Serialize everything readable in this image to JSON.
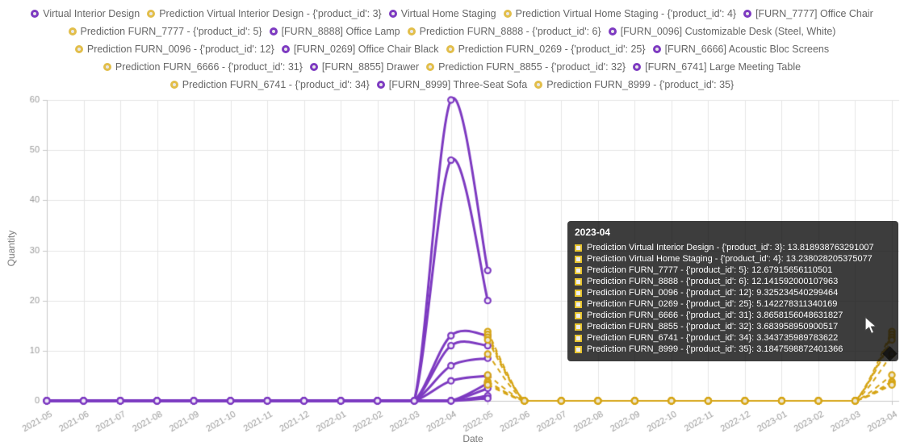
{
  "colors": {
    "actual": "#7D3AC1",
    "actual_marker_fill": "#EFE9F7",
    "prediction": "#D6A516",
    "prediction_marker_fill": "#EDE7D2",
    "legend_prediction_ring": "#E2BE4A",
    "grid": "#e6e6e6",
    "axis": "#c9c9c9",
    "tick_text": "#999999",
    "legend_text": "#666666",
    "tooltip_bg": "rgba(12,12,12,0.80)"
  },
  "legend": {
    "items": [
      {
        "label": "Virtual Interior Design",
        "type": "actual"
      },
      {
        "label": "Prediction Virtual Interior Design - {'product_id': 3}",
        "type": "prediction"
      },
      {
        "label": "Virtual Home Staging",
        "type": "actual"
      },
      {
        "label": "Prediction Virtual Home Staging - {'product_id': 4}",
        "type": "prediction"
      },
      {
        "label": "[FURN_7777] Office Chair",
        "type": "actual"
      },
      {
        "label": "Prediction FURN_7777 - {'product_id': 5}",
        "type": "prediction"
      },
      {
        "label": "[FURN_8888] Office Lamp",
        "type": "actual"
      },
      {
        "label": "Prediction FURN_8888 - {'product_id': 6}",
        "type": "prediction"
      },
      {
        "label": "[FURN_0096] Customizable Desk (Steel, White)",
        "type": "actual"
      },
      {
        "label": "Prediction FURN_0096 - {'product_id': 12}",
        "type": "prediction"
      },
      {
        "label": "[FURN_0269] Office Chair Black",
        "type": "actual"
      },
      {
        "label": "Prediction FURN_0269 - {'product_id': 25}",
        "type": "prediction"
      },
      {
        "label": "[FURN_6666] Acoustic Bloc Screens",
        "type": "actual"
      },
      {
        "label": "Prediction FURN_6666 - {'product_id': 31}",
        "type": "prediction"
      },
      {
        "label": "[FURN_8855] Drawer",
        "type": "actual"
      },
      {
        "label": "Prediction FURN_8855 - {'product_id': 32}",
        "type": "prediction"
      },
      {
        "label": "[FURN_6741] Large Meeting Table",
        "type": "actual"
      },
      {
        "label": "Prediction FURN_6741 - {'product_id': 34}",
        "type": "prediction"
      },
      {
        "label": "[FURN_8999] Three-Seat Sofa",
        "type": "actual"
      },
      {
        "label": "Prediction FURN_8999 - {'product_id': 35}",
        "type": "prediction"
      }
    ]
  },
  "axes": {
    "x_label": "Date",
    "y_label": "Quantity",
    "y_ticks": [
      0,
      10,
      20,
      30,
      40,
      50,
      60
    ]
  },
  "tooltip": {
    "title": "2023-04",
    "rows": [
      {
        "label": "Prediction Virtual Interior Design - {'product_id': 3}",
        "value": "13.818938763291007"
      },
      {
        "label": "Prediction Virtual Home Staging - {'product_id': 4}",
        "value": "13.238028205375077"
      },
      {
        "label": "Prediction FURN_7777 - {'product_id': 5}",
        "value": "12.67915656110501"
      },
      {
        "label": "Prediction FURN_8888 - {'product_id': 6}",
        "value": "12.141592000107963"
      },
      {
        "label": "Prediction FURN_0096 - {'product_id': 12}",
        "value": "9.325234540299464"
      },
      {
        "label": "Prediction FURN_0269 - {'product_id': 25}",
        "value": "5.142278311340169"
      },
      {
        "label": "Prediction FURN_6666 - {'product_id': 31}",
        "value": "3.8658156048631827"
      },
      {
        "label": "Prediction FURN_8855 - {'product_id': 32}",
        "value": "3.683958950900517"
      },
      {
        "label": "Prediction FURN_6741 - {'product_id': 34}",
        "value": "3.343735989783622"
      },
      {
        "label": "Prediction FURN_8999 - {'product_id': 35}",
        "value": "3.1847598872401366"
      }
    ]
  },
  "chart_data": {
    "type": "line",
    "title": "",
    "xlabel": "Date",
    "ylabel": "Quantity",
    "ylim": [
      0,
      60
    ],
    "grid": true,
    "legend_position": "top",
    "x": [
      "2021-05",
      "2021-06",
      "2021-07",
      "2021-08",
      "2021-09",
      "2021-10",
      "2021-11",
      "2021-12",
      "2022-01",
      "2022-02",
      "2022-03",
      "2022-04",
      "2022-05",
      "2022-06",
      "2022-07",
      "2022-08",
      "2022-09",
      "2022-10",
      "2022-11",
      "2022-12",
      "2023-01",
      "2023-02",
      "2023-03",
      "2023-04"
    ],
    "series": [
      {
        "name": "Virtual Interior Design",
        "role": "actual",
        "values": [
          0,
          0,
          0,
          0,
          0,
          0,
          0,
          0,
          0,
          0,
          0,
          60,
          26,
          null,
          null,
          null,
          null,
          null,
          null,
          null,
          null,
          null,
          null,
          null
        ]
      },
      {
        "name": "Virtual Home Staging",
        "role": "actual",
        "values": [
          0,
          0,
          0,
          0,
          0,
          0,
          0,
          0,
          0,
          0,
          0,
          48,
          20,
          null,
          null,
          null,
          null,
          null,
          null,
          null,
          null,
          null,
          null,
          null
        ]
      },
      {
        "name": "[FURN_7777] Office Chair",
        "role": "actual",
        "values": [
          0,
          0,
          0,
          0,
          0,
          0,
          0,
          0,
          0,
          0,
          0,
          13,
          13,
          null,
          null,
          null,
          null,
          null,
          null,
          null,
          null,
          null,
          null,
          null
        ]
      },
      {
        "name": "[FURN_8888] Office Lamp",
        "role": "actual",
        "values": [
          0,
          0,
          0,
          0,
          0,
          0,
          0,
          0,
          0,
          0,
          0,
          11,
          11,
          null,
          null,
          null,
          null,
          null,
          null,
          null,
          null,
          null,
          null,
          null
        ]
      },
      {
        "name": "[FURN_0096] Customizable Desk (Steel, White)",
        "role": "actual",
        "values": [
          0,
          0,
          0,
          0,
          0,
          0,
          0,
          0,
          0,
          0,
          0,
          7,
          8.5,
          null,
          null,
          null,
          null,
          null,
          null,
          null,
          null,
          null,
          null,
          null
        ]
      },
      {
        "name": "[FURN_0269] Office Chair Black",
        "role": "actual",
        "values": [
          0,
          0,
          0,
          0,
          0,
          0,
          0,
          0,
          0,
          0,
          0,
          4,
          5,
          null,
          null,
          null,
          null,
          null,
          null,
          null,
          null,
          null,
          null,
          null
        ]
      },
      {
        "name": "[FURN_6666] Acoustic Bloc Screens",
        "role": "actual",
        "values": [
          0,
          0,
          0,
          0,
          0,
          0,
          0,
          0,
          0,
          0,
          0,
          0,
          3.5,
          null,
          null,
          null,
          null,
          null,
          null,
          null,
          null,
          null,
          null,
          null
        ]
      },
      {
        "name": "[FURN_8855] Drawer",
        "role": "actual",
        "values": [
          0,
          0,
          0,
          0,
          0,
          0,
          0,
          0,
          0,
          0,
          0,
          0,
          2.5,
          null,
          null,
          null,
          null,
          null,
          null,
          null,
          null,
          null,
          null,
          null
        ]
      },
      {
        "name": "[FURN_6741] Large Meeting Table",
        "role": "actual",
        "values": [
          0,
          0,
          0,
          0,
          0,
          0,
          0,
          0,
          0,
          0,
          0,
          0,
          1,
          null,
          null,
          null,
          null,
          null,
          null,
          null,
          null,
          null,
          null,
          null
        ]
      },
      {
        "name": "[FURN_8999] Three-Seat Sofa",
        "role": "actual",
        "values": [
          0,
          0,
          0,
          0,
          0,
          0,
          0,
          0,
          0,
          0,
          0,
          0,
          0.5,
          null,
          null,
          null,
          null,
          null,
          null,
          null,
          null,
          null,
          null,
          null
        ]
      },
      {
        "name": "Prediction Virtual Interior Design - {'product_id': 3}",
        "role": "prediction",
        "values": [
          null,
          null,
          null,
          null,
          null,
          null,
          null,
          null,
          null,
          null,
          null,
          null,
          13.82,
          0,
          0,
          0,
          0,
          0,
          0,
          0,
          0,
          0,
          0,
          13.818938763291007
        ]
      },
      {
        "name": "Prediction Virtual Home Staging - {'product_id': 4}",
        "role": "prediction",
        "values": [
          null,
          null,
          null,
          null,
          null,
          null,
          null,
          null,
          null,
          null,
          null,
          null,
          13.24,
          0,
          0,
          0,
          0,
          0,
          0,
          0,
          0,
          0,
          0,
          13.238028205375077
        ]
      },
      {
        "name": "Prediction FURN_7777 - {'product_id': 5}",
        "role": "prediction",
        "values": [
          null,
          null,
          null,
          null,
          null,
          null,
          null,
          null,
          null,
          null,
          null,
          null,
          12.68,
          0,
          0,
          0,
          0,
          0,
          0,
          0,
          0,
          0,
          0,
          12.67915656110501
        ]
      },
      {
        "name": "Prediction FURN_8888 - {'product_id': 6}",
        "role": "prediction",
        "values": [
          null,
          null,
          null,
          null,
          null,
          null,
          null,
          null,
          null,
          null,
          null,
          null,
          12.14,
          0,
          0,
          0,
          0,
          0,
          0,
          0,
          0,
          0,
          0,
          12.141592000107963
        ]
      },
      {
        "name": "Prediction FURN_0096 - {'product_id': 12}",
        "role": "prediction",
        "values": [
          null,
          null,
          null,
          null,
          null,
          null,
          null,
          null,
          null,
          null,
          null,
          null,
          9.33,
          0,
          0,
          0,
          0,
          0,
          0,
          0,
          0,
          0,
          0,
          9.325234540299464
        ]
      },
      {
        "name": "Prediction FURN_0269 - {'product_id': 25}",
        "role": "prediction",
        "values": [
          null,
          null,
          null,
          null,
          null,
          null,
          null,
          null,
          null,
          null,
          null,
          null,
          5.14,
          0,
          0,
          0,
          0,
          0,
          0,
          0,
          0,
          0,
          0,
          5.142278311340169
        ]
      },
      {
        "name": "Prediction FURN_6666 - {'product_id': 31}",
        "role": "prediction",
        "values": [
          null,
          null,
          null,
          null,
          null,
          null,
          null,
          null,
          null,
          null,
          null,
          null,
          3.87,
          0,
          0,
          0,
          0,
          0,
          0,
          0,
          0,
          0,
          0,
          3.8658156048631827
        ]
      },
      {
        "name": "Prediction FURN_8855 - {'product_id': 32}",
        "role": "prediction",
        "values": [
          null,
          null,
          null,
          null,
          null,
          null,
          null,
          null,
          null,
          null,
          null,
          null,
          3.68,
          0,
          0,
          0,
          0,
          0,
          0,
          0,
          0,
          0,
          0,
          3.683958950900517
        ]
      },
      {
        "name": "Prediction FURN_6741 - {'product_id': 34}",
        "role": "prediction",
        "values": [
          null,
          null,
          null,
          null,
          null,
          null,
          null,
          null,
          null,
          null,
          null,
          null,
          3.34,
          0,
          0,
          0,
          0,
          0,
          0,
          0,
          0,
          0,
          0,
          3.343735989783622
        ]
      },
      {
        "name": "Prediction FURN_8999 - {'product_id': 35}",
        "role": "prediction",
        "values": [
          null,
          null,
          null,
          null,
          null,
          null,
          null,
          null,
          null,
          null,
          null,
          null,
          3.18,
          0,
          0,
          0,
          0,
          0,
          0,
          0,
          0,
          0,
          0,
          3.1847598872401366
        ]
      }
    ]
  }
}
